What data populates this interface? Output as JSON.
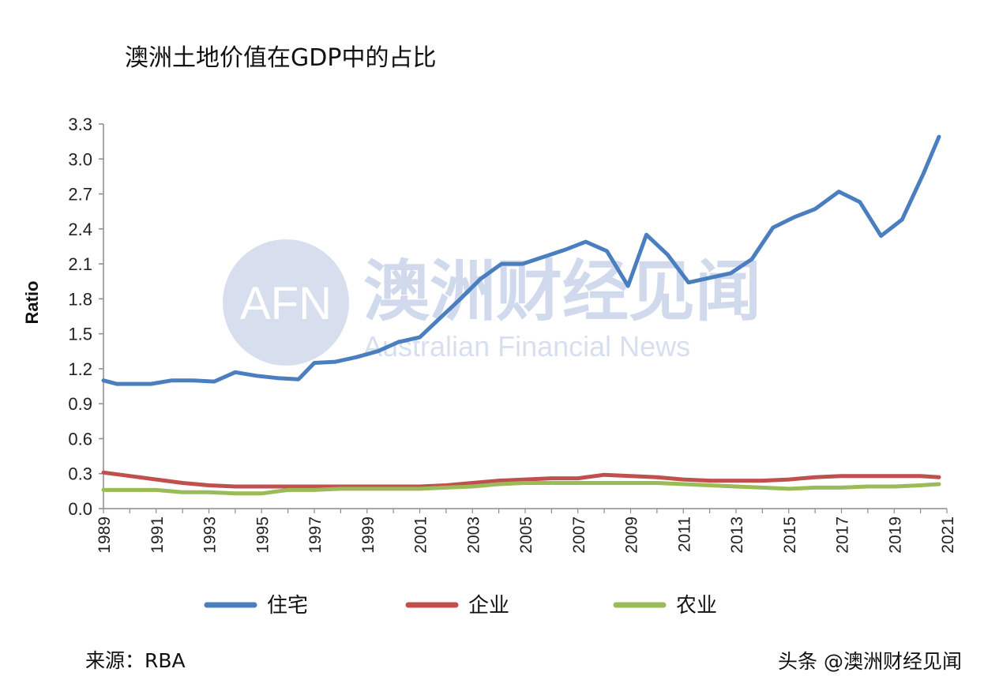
{
  "watermark": {
    "logo": "AFN",
    "name_cn": "澳洲财经见闻",
    "name_en": "Australian Financial News"
  },
  "source": "来源：RBA",
  "credit": "头条 @澳洲财经见闻",
  "colors": {
    "series": [
      "#4a7ebf",
      "#c0504d",
      "#9bbb59"
    ],
    "axis": "#8c8c8c",
    "watermark": "#c9d4ea"
  },
  "chart_data": {
    "type": "line",
    "title": "澳洲土地价值在GDP中的占比",
    "xlabel": "",
    "ylabel": "Ratio",
    "xlim": [
      1989,
      2021
    ],
    "ylim": [
      0,
      3.3
    ],
    "yticks": [
      "0.0",
      "0.3",
      "0.6",
      "0.9",
      "1.2",
      "1.5",
      "1.8",
      "2.1",
      "2.4",
      "2.7",
      "3.0",
      "3.3"
    ],
    "xticks": [
      "1989",
      "1991",
      "1993",
      "1995",
      "1997",
      "1999",
      "2001",
      "2003",
      "2005",
      "2007",
      "2009",
      "2011",
      "2013",
      "2015",
      "2017",
      "2019",
      "2021"
    ],
    "grid": false,
    "legend_position": "bottom",
    "series": [
      {
        "name": "住宅",
        "x": [
          1989,
          1989.5,
          1990,
          1990.8,
          1991.6,
          1992.4,
          1993.2,
          1994,
          1994.8,
          1995.6,
          1996.4,
          1997,
          1997.8,
          1998.6,
          1999.4,
          2000.2,
          2001,
          2001.7,
          2002.5,
          2003.3,
          2004.1,
          2004.9,
          2005.7,
          2006.5,
          2007.3,
          2008.1,
          2008.9,
          2009.6,
          2010.4,
          2011.2,
          2012,
          2012.8,
          2013.6,
          2014.4,
          2015.2,
          2016,
          2016.9,
          2017.7,
          2018.5,
          2019.3,
          2020.1,
          2020.7
        ],
        "values": [
          1.1,
          1.07,
          1.07,
          1.07,
          1.1,
          1.1,
          1.09,
          1.17,
          1.14,
          1.12,
          1.11,
          1.25,
          1.26,
          1.3,
          1.35,
          1.43,
          1.47,
          1.62,
          1.79,
          1.97,
          2.1,
          2.1,
          2.16,
          2.22,
          2.29,
          2.21,
          1.91,
          2.35,
          2.18,
          1.94,
          1.98,
          2.02,
          2.14,
          2.41,
          2.5,
          2.57,
          2.72,
          2.63,
          2.34,
          2.48,
          2.87,
          3.19
        ]
      },
      {
        "name": "企业",
        "x": [
          1989,
          1990,
          1991,
          1992,
          1993,
          1994,
          1995,
          1996,
          1997,
          1998,
          1999,
          2000,
          2001,
          2002,
          2003,
          2004,
          2005,
          2006,
          2007,
          2008,
          2009,
          2010,
          2011,
          2012,
          2013,
          2014,
          2015,
          2016,
          2017,
          2018,
          2019,
          2020,
          2020.7
        ],
        "values": [
          0.31,
          0.28,
          0.25,
          0.22,
          0.2,
          0.19,
          0.19,
          0.19,
          0.19,
          0.19,
          0.19,
          0.19,
          0.19,
          0.2,
          0.22,
          0.24,
          0.25,
          0.26,
          0.26,
          0.29,
          0.28,
          0.27,
          0.25,
          0.24,
          0.24,
          0.24,
          0.25,
          0.27,
          0.28,
          0.28,
          0.28,
          0.28,
          0.27
        ]
      },
      {
        "name": "农业",
        "x": [
          1989,
          1990,
          1991,
          1992,
          1993,
          1994,
          1995,
          1996,
          1997,
          1998,
          1999,
          2000,
          2001,
          2002,
          2003,
          2004,
          2005,
          2006,
          2007,
          2008,
          2009,
          2010,
          2011,
          2012,
          2013,
          2014,
          2015,
          2016,
          2017,
          2018,
          2019,
          2020,
          2020.7
        ],
        "values": [
          0.16,
          0.16,
          0.16,
          0.14,
          0.14,
          0.13,
          0.13,
          0.16,
          0.16,
          0.17,
          0.17,
          0.17,
          0.17,
          0.18,
          0.19,
          0.21,
          0.22,
          0.22,
          0.22,
          0.22,
          0.22,
          0.22,
          0.21,
          0.2,
          0.19,
          0.18,
          0.17,
          0.18,
          0.18,
          0.19,
          0.19,
          0.2,
          0.21
        ]
      }
    ]
  }
}
